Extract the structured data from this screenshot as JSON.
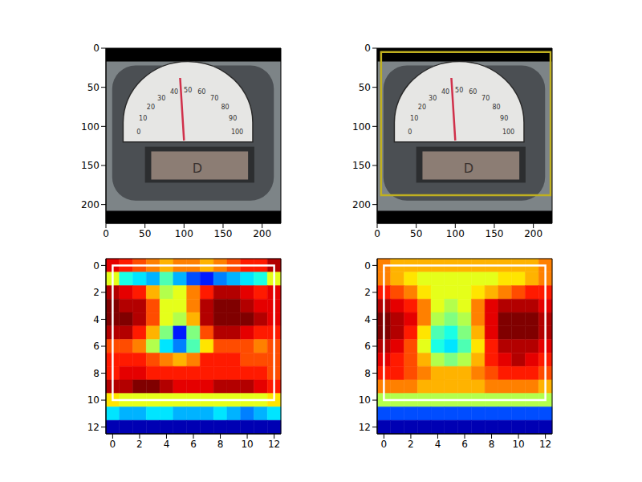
{
  "chart_data": [
    {
      "type": "image",
      "xlim": [
        0,
        224
      ],
      "ylim": [
        224,
        0
      ],
      "xticks": [
        0,
        50,
        100,
        150,
        200
      ],
      "yticks": [
        0,
        50,
        100,
        150,
        200
      ],
      "dial_labels": [
        "0",
        "10",
        "20",
        "30",
        "40",
        "50",
        "60",
        "70",
        "80",
        "90",
        "100"
      ],
      "display_text": "D"
    },
    {
      "type": "image",
      "xlim": [
        0,
        224
      ],
      "ylim": [
        224,
        0
      ],
      "xticks": [
        0,
        50,
        100,
        150,
        200
      ],
      "yticks": [
        0,
        50,
        100,
        150,
        200
      ],
      "dial_labels": [
        "0",
        "10",
        "20",
        "30",
        "40",
        "50",
        "60",
        "70",
        "80",
        "90",
        "100"
      ],
      "display_text": "D",
      "box": {
        "x": [
          5,
          222
        ],
        "y": [
          5,
          188
        ]
      },
      "color": "#c0b020"
    },
    {
      "type": "heatmap",
      "xlim": [
        -0.5,
        12.5
      ],
      "ylim": [
        12.5,
        -0.5
      ],
      "xticks": [
        0,
        2,
        4,
        6,
        8,
        10,
        12
      ],
      "yticks": [
        0,
        2,
        4,
        6,
        8,
        10,
        12
      ],
      "zlim": [
        0,
        1
      ],
      "box": {
        "x": [
          0,
          12
        ],
        "y": [
          0,
          10
        ]
      },
      "color": "#ffffff",
      "cells": [
        [
          0.9,
          0.85,
          0.8,
          0.75,
          0.7,
          0.75,
          0.75,
          0.7,
          0.75,
          0.8,
          0.85,
          0.85,
          0.95
        ],
        [
          0.6,
          0.4,
          0.35,
          0.3,
          0.45,
          0.3,
          0.2,
          0.15,
          0.25,
          0.3,
          0.35,
          0.4,
          0.6
        ],
        [
          0.95,
          0.9,
          0.85,
          0.7,
          0.55,
          0.6,
          0.75,
          0.85,
          0.95,
          0.95,
          0.9,
          0.85,
          0.9
        ],
        [
          1,
          0.95,
          0.95,
          0.8,
          0.6,
          0.6,
          0.75,
          0.95,
          1,
          1,
          0.95,
          0.9,
          0.9
        ],
        [
          1,
          1,
          0.95,
          0.8,
          0.6,
          0.55,
          0.7,
          0.95,
          1,
          1,
          1,
          0.95,
          0.9
        ],
        [
          0.95,
          0.95,
          0.85,
          0.7,
          0.5,
          0.15,
          0.5,
          0.8,
          0.95,
          0.95,
          0.9,
          0.85,
          0.85
        ],
        [
          0.8,
          0.8,
          0.75,
          0.55,
          0.35,
          0.25,
          0.45,
          0.65,
          0.8,
          0.8,
          0.8,
          0.75,
          0.8
        ],
        [
          0.85,
          0.85,
          0.85,
          0.8,
          0.75,
          0.7,
          0.75,
          0.85,
          0.85,
          0.85,
          0.8,
          0.8,
          0.8
        ],
        [
          0.85,
          0.9,
          0.9,
          0.85,
          0.85,
          0.85,
          0.85,
          0.85,
          0.85,
          0.85,
          0.85,
          0.85,
          0.8
        ],
        [
          0.95,
          0.95,
          1,
          1,
          0.95,
          0.9,
          0.9,
          0.9,
          0.95,
          0.95,
          0.95,
          0.9,
          0.85
        ],
        [
          0.65,
          0.6,
          0.6,
          0.6,
          0.6,
          0.6,
          0.6,
          0.6,
          0.6,
          0.6,
          0.6,
          0.6,
          0.65
        ],
        [
          0.35,
          0.3,
          0.3,
          0.35,
          0.35,
          0.3,
          0.3,
          0.3,
          0.35,
          0.3,
          0.25,
          0.3,
          0.35
        ],
        [
          0.05,
          0.05,
          0.05,
          0.05,
          0.05,
          0.05,
          0.05,
          0.05,
          0.05,
          0.05,
          0.05,
          0.05,
          0.05
        ]
      ]
    },
    {
      "type": "heatmap",
      "xlim": [
        -0.5,
        12.5
      ],
      "ylim": [
        12.5,
        -0.5
      ],
      "xticks": [
        0,
        2,
        4,
        6,
        8,
        10,
        12
      ],
      "yticks": [
        0,
        2,
        4,
        6,
        8,
        10,
        12
      ],
      "zlim": [
        0,
        1
      ],
      "box": {
        "x": [
          0,
          12
        ],
        "y": [
          0,
          10
        ]
      },
      "color": "#ffffff",
      "cells": [
        [
          0.75,
          0.7,
          0.7,
          0.7,
          0.7,
          0.7,
          0.7,
          0.7,
          0.7,
          0.7,
          0.7,
          0.7,
          0.75
        ],
        [
          0.75,
          0.7,
          0.65,
          0.6,
          0.6,
          0.6,
          0.6,
          0.6,
          0.6,
          0.65,
          0.65,
          0.7,
          0.75
        ],
        [
          0.85,
          0.8,
          0.75,
          0.65,
          0.6,
          0.6,
          0.6,
          0.65,
          0.7,
          0.75,
          0.8,
          0.85,
          0.85
        ],
        [
          0.95,
          0.9,
          0.85,
          0.75,
          0.6,
          0.55,
          0.6,
          0.75,
          0.9,
          0.95,
          0.95,
          0.95,
          0.9
        ],
        [
          1,
          0.95,
          0.9,
          0.75,
          0.55,
          0.5,
          0.55,
          0.75,
          0.9,
          1,
          1,
          1,
          0.95
        ],
        [
          1,
          0.95,
          0.85,
          0.65,
          0.45,
          0.4,
          0.5,
          0.7,
          0.9,
          1,
          1,
          1,
          0.95
        ],
        [
          0.95,
          0.9,
          0.8,
          0.6,
          0.4,
          0.35,
          0.45,
          0.65,
          0.85,
          0.95,
          0.95,
          0.95,
          0.9
        ],
        [
          0.9,
          0.85,
          0.8,
          0.7,
          0.55,
          0.5,
          0.55,
          0.7,
          0.85,
          0.9,
          0.95,
          0.9,
          0.85
        ],
        [
          0.85,
          0.85,
          0.8,
          0.75,
          0.7,
          0.7,
          0.7,
          0.75,
          0.8,
          0.85,
          0.85,
          0.85,
          0.8
        ],
        [
          0.75,
          0.75,
          0.75,
          0.7,
          0.7,
          0.7,
          0.7,
          0.7,
          0.75,
          0.75,
          0.75,
          0.75,
          0.7
        ],
        [
          0.55,
          0.55,
          0.55,
          0.55,
          0.55,
          0.55,
          0.55,
          0.55,
          0.55,
          0.55,
          0.55,
          0.55,
          0.55
        ],
        [
          0.2,
          0.2,
          0.2,
          0.2,
          0.2,
          0.2,
          0.2,
          0.2,
          0.2,
          0.2,
          0.2,
          0.2,
          0.2
        ],
        [
          0.05,
          0.05,
          0.05,
          0.05,
          0.05,
          0.05,
          0.05,
          0.05,
          0.05,
          0.05,
          0.05,
          0.05,
          0.05
        ]
      ]
    }
  ]
}
